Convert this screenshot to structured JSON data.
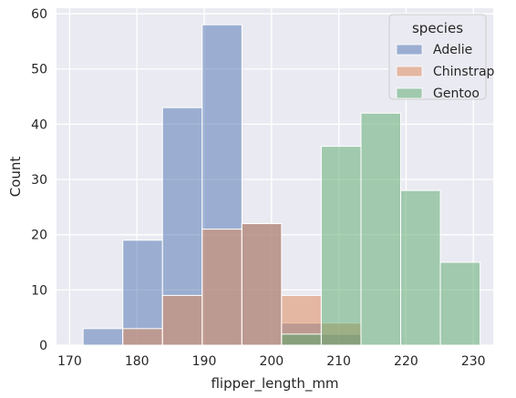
{
  "chart_data": {
    "type": "bar",
    "xlabel": "flipper_length_mm",
    "ylabel": "Count",
    "xlim": [
      168.05,
      232.95
    ],
    "ylim": [
      0,
      61
    ],
    "xticks": [
      170,
      180,
      190,
      200,
      210,
      220,
      230
    ],
    "yticks": [
      0,
      10,
      20,
      30,
      40,
      50,
      60
    ],
    "bin_edges": [
      172,
      177.9,
      183.8,
      189.7,
      195.6,
      201.5,
      207.4,
      213.3,
      219.2,
      225.1,
      231
    ],
    "grid": true,
    "legend": {
      "title": "species",
      "position": "top-right"
    },
    "series": [
      {
        "name": "Adelie",
        "color": "#4c72b0",
        "values": [
          3,
          19,
          43,
          58,
          22,
          4,
          2,
          0,
          0,
          0
        ]
      },
      {
        "name": "Chinstrap",
        "color": "#dd8452",
        "values": [
          0,
          3,
          9,
          21,
          22,
          9,
          4,
          0,
          0,
          0
        ]
      },
      {
        "name": "Gentoo",
        "color": "#55a868",
        "values": [
          0,
          0,
          0,
          0,
          0,
          2,
          36,
          42,
          28,
          15
        ]
      }
    ]
  }
}
